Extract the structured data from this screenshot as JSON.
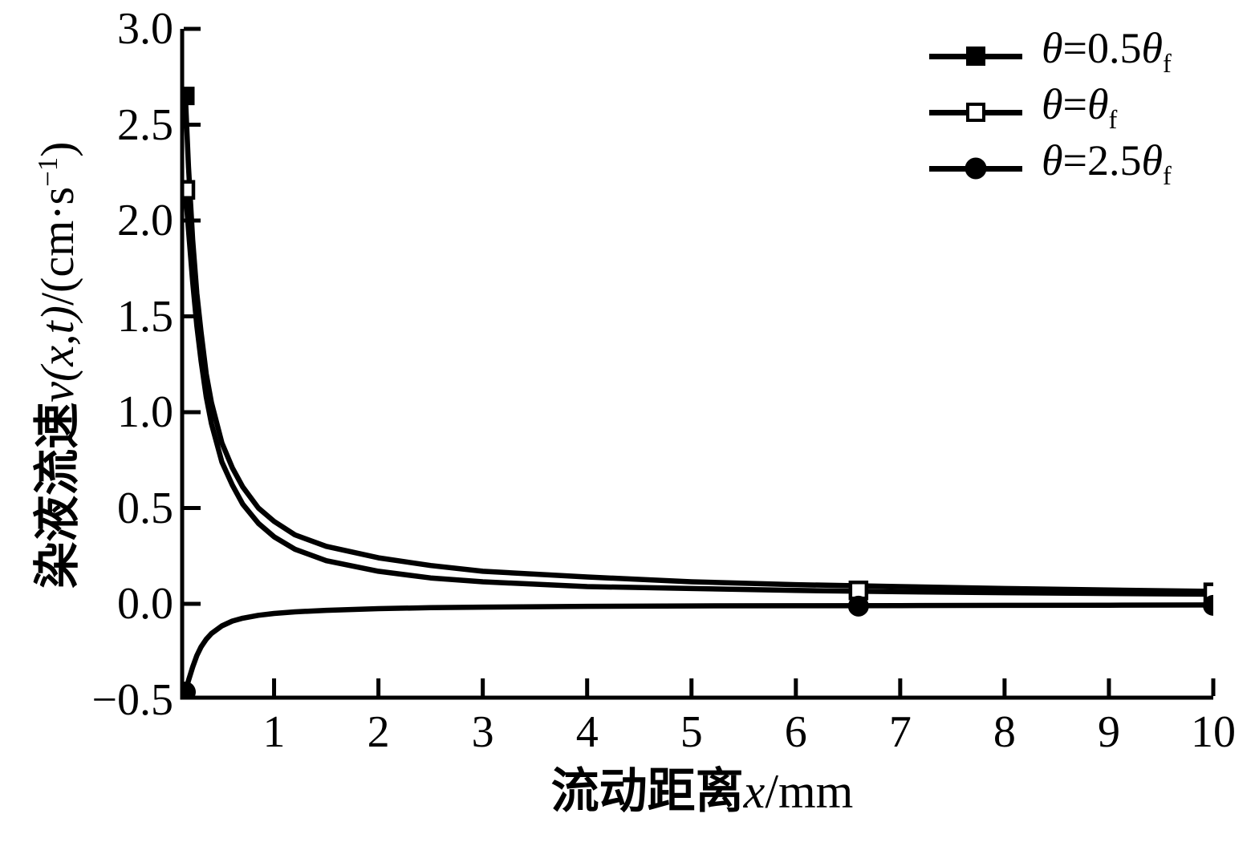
{
  "chart_data": {
    "type": "line",
    "title": "",
    "xlabel": "流动距离x/mm",
    "ylabel": "染液流速v(x,t)/(cm·s−1)",
    "xlabel_parts": {
      "cjk": "流动距离",
      "var": "x",
      "unit": "/mm"
    },
    "ylabel_parts": {
      "cjk": "染液流速",
      "var": "v(x,t)",
      "unit_pre": "/(cm·s",
      "sup": "−1",
      "unit_post": ")"
    },
    "xlim": [
      0,
      10
    ],
    "ylim": [
      -0.5,
      3.0
    ],
    "grid": false,
    "legend_position": "top-right",
    "x_ticks": {
      "values": [
        1,
        2,
        3,
        4,
        5,
        6,
        7,
        8,
        9,
        10
      ],
      "labels": [
        "1",
        "2",
        "3",
        "4",
        "5",
        "6",
        "7",
        "8",
        "9",
        "10"
      ]
    },
    "y_ticks": {
      "values": [
        3.0,
        2.5,
        2.0,
        1.5,
        1.0,
        0.5,
        0.0,
        -0.5
      ],
      "labels": [
        "3.0",
        "2.5",
        "2.0",
        "1.5",
        "1.0",
        "0.5",
        "0.0",
        "−0.5"
      ]
    },
    "colors": {
      "ink": "#000000",
      "background": "#ffffff"
    },
    "legend": {
      "entries": [
        {
          "marker": "filled-square",
          "t1": "θ",
          "mid": "=0.5",
          "t2": "θ",
          "sub": "f",
          "label": "θ=0.5θf"
        },
        {
          "marker": "open-square",
          "t1": "θ",
          "mid": "=",
          "t2": "θ",
          "sub": "f",
          "label": "θ=θf"
        },
        {
          "marker": "filled-circle",
          "t1": "θ",
          "mid": "=2.5",
          "t2": "θ",
          "sub": "f",
          "label": "θ=2.5θf"
        }
      ]
    },
    "series": [
      {
        "name": "θ=0.5θf",
        "marker": "filled-square",
        "points": [
          [
            0.15,
            2.65
          ],
          [
            0.18,
            2.28
          ],
          [
            0.22,
            1.9
          ],
          [
            0.26,
            1.62
          ],
          [
            0.3,
            1.42
          ],
          [
            0.35,
            1.2
          ],
          [
            0.4,
            1.05
          ],
          [
            0.5,
            0.84
          ],
          [
            0.6,
            0.71
          ],
          [
            0.7,
            0.61
          ],
          [
            0.85,
            0.5
          ],
          [
            1.0,
            0.43
          ],
          [
            1.2,
            0.36
          ],
          [
            1.5,
            0.3
          ],
          [
            2.0,
            0.24
          ],
          [
            2.5,
            0.2
          ],
          [
            3.0,
            0.17
          ],
          [
            4.0,
            0.14
          ],
          [
            5.0,
            0.115
          ],
          [
            6.0,
            0.1
          ],
          [
            7.0,
            0.09
          ],
          [
            8.0,
            0.08
          ],
          [
            9.0,
            0.072
          ],
          [
            10,
            0.065
          ]
        ],
        "marker_points": [
          [
            0.15,
            2.65
          ]
        ]
      },
      {
        "name": "θ=θf",
        "marker": "open-square",
        "points": [
          [
            0.15,
            2.16
          ],
          [
            0.18,
            1.95
          ],
          [
            0.22,
            1.68
          ],
          [
            0.26,
            1.45
          ],
          [
            0.3,
            1.27
          ],
          [
            0.35,
            1.08
          ],
          [
            0.4,
            0.94
          ],
          [
            0.5,
            0.74
          ],
          [
            0.6,
            0.62
          ],
          [
            0.7,
            0.52
          ],
          [
            0.85,
            0.42
          ],
          [
            1.0,
            0.35
          ],
          [
            1.2,
            0.285
          ],
          [
            1.5,
            0.225
          ],
          [
            2.0,
            0.17
          ],
          [
            2.5,
            0.135
          ],
          [
            3.0,
            0.115
          ],
          [
            4.0,
            0.09
          ],
          [
            5.0,
            0.08
          ],
          [
            6.0,
            0.07
          ],
          [
            7.0,
            0.063
          ],
          [
            8.0,
            0.058
          ],
          [
            9.0,
            0.054
          ],
          [
            10,
            0.05
          ]
        ],
        "marker_points": [
          [
            0.15,
            2.16
          ],
          [
            6.6,
            0.07
          ],
          [
            10,
            0.06
          ]
        ]
      },
      {
        "name": "θ=2.5θf",
        "marker": "filled-circle",
        "points": [
          [
            0.15,
            -0.46
          ],
          [
            0.18,
            -0.4
          ],
          [
            0.22,
            -0.33
          ],
          [
            0.26,
            -0.27
          ],
          [
            0.3,
            -0.225
          ],
          [
            0.35,
            -0.185
          ],
          [
            0.4,
            -0.155
          ],
          [
            0.5,
            -0.115
          ],
          [
            0.6,
            -0.09
          ],
          [
            0.7,
            -0.075
          ],
          [
            0.85,
            -0.06
          ],
          [
            1.0,
            -0.05
          ],
          [
            1.2,
            -0.042
          ],
          [
            1.5,
            -0.034
          ],
          [
            2.0,
            -0.025
          ],
          [
            2.5,
            -0.02
          ],
          [
            3.0,
            -0.017
          ],
          [
            4.0,
            -0.013
          ],
          [
            5.0,
            -0.011
          ],
          [
            6.0,
            -0.01
          ],
          [
            7.0,
            -0.009
          ],
          [
            8.0,
            -0.008
          ],
          [
            9.0,
            -0.007
          ],
          [
            10,
            -0.006
          ]
        ],
        "marker_points": [
          [
            0.15,
            -0.46
          ],
          [
            6.6,
            -0.012
          ],
          [
            10,
            -0.008
          ]
        ]
      }
    ]
  }
}
